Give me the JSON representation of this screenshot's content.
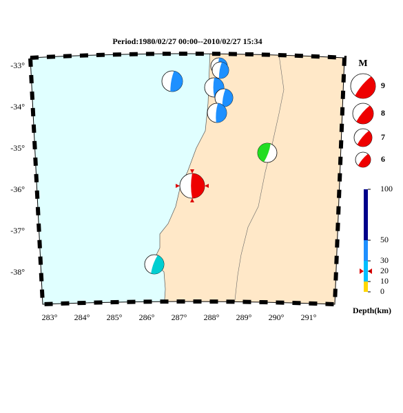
{
  "header": {
    "title": "Period:1980/02/27 00:00--2010/02/27 15:34"
  },
  "map": {
    "lat_labels": [
      "-33°",
      "-34°",
      "-35°",
      "-36°",
      "-37°",
      "-38°"
    ],
    "lon_labels": [
      "283°",
      "284°",
      "285°",
      "286°",
      "287°",
      "288°",
      "289°",
      "290°",
      "291°"
    ]
  },
  "legend": {
    "title": "M",
    "magnitudes": [
      "9",
      "8",
      "7",
      "6"
    ],
    "depth_ticks": [
      "100",
      "50",
      "30",
      "20",
      "10",
      "0"
    ],
    "depth_title": "Depth(km)"
  }
}
